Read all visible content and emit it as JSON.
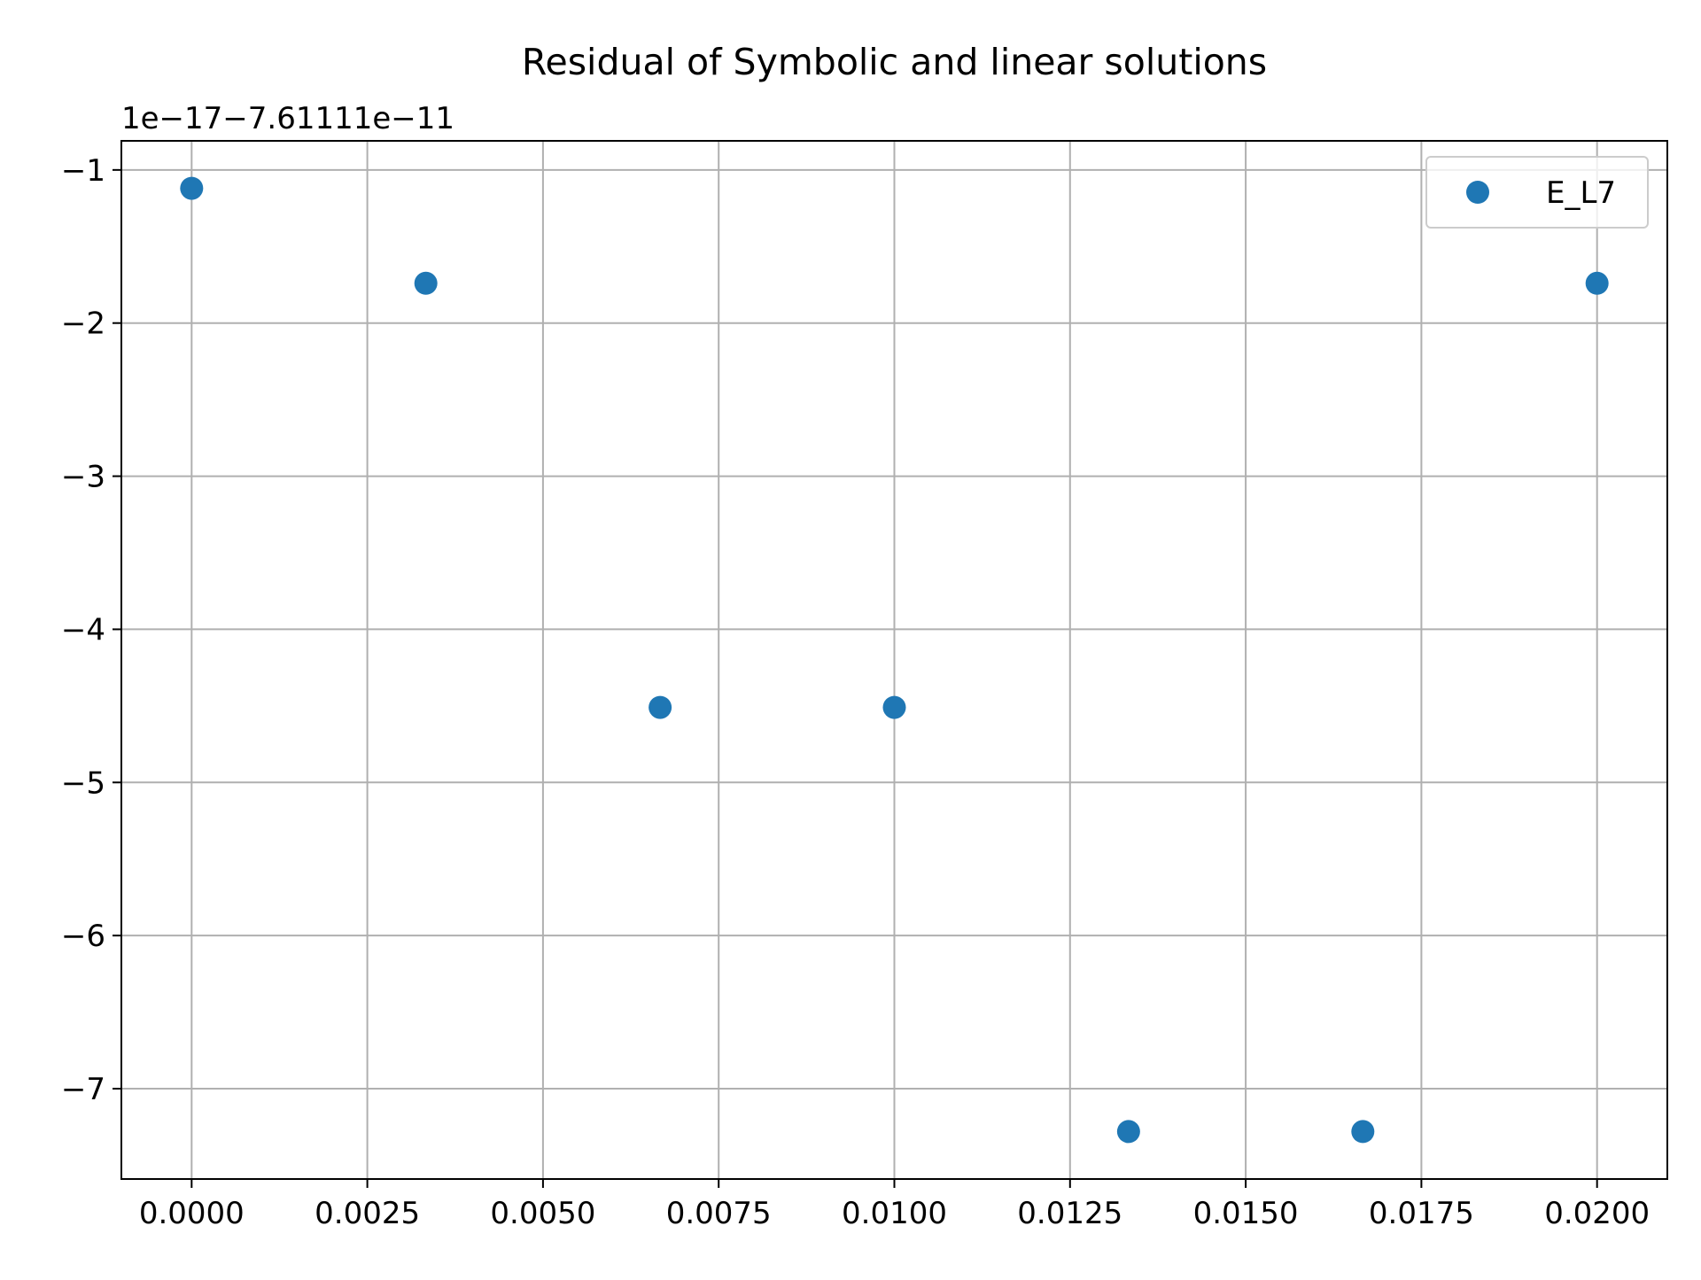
{
  "chart_data": {
    "type": "scatter",
    "title": "Residual of Symbolic and linear solutions",
    "xlabel": "",
    "ylabel": "",
    "y_offset_text": "1e−17−7.61111e−11",
    "xlim": [
      -0.001,
      0.021
    ],
    "ylim": [
      -7.59,
      -0.81
    ],
    "grid": true,
    "legend_position": "top-right",
    "x_ticks": [
      0.0,
      0.0025,
      0.005,
      0.0075,
      0.01,
      0.0125,
      0.015,
      0.0175,
      0.02
    ],
    "x_tick_labels": [
      "0.0000",
      "0.0025",
      "0.0050",
      "0.0075",
      "0.0100",
      "0.0125",
      "0.0150",
      "0.0175",
      "0.0200"
    ],
    "y_ticks": [
      -1,
      -2,
      -3,
      -4,
      -5,
      -6,
      -7
    ],
    "y_tick_labels": [
      "−1",
      "−2",
      "−3",
      "−4",
      "−5",
      "−6",
      "−7"
    ],
    "series": [
      {
        "name": "E_L7",
        "color": "#1f77b4",
        "marker": "circle",
        "x": [
          0.0,
          0.003333,
          0.006667,
          0.01,
          0.013333,
          0.016667,
          0.02
        ],
        "y": [
          -1.12,
          -1.74,
          -4.51,
          -4.51,
          -7.28,
          -7.28,
          -1.74
        ]
      }
    ]
  }
}
